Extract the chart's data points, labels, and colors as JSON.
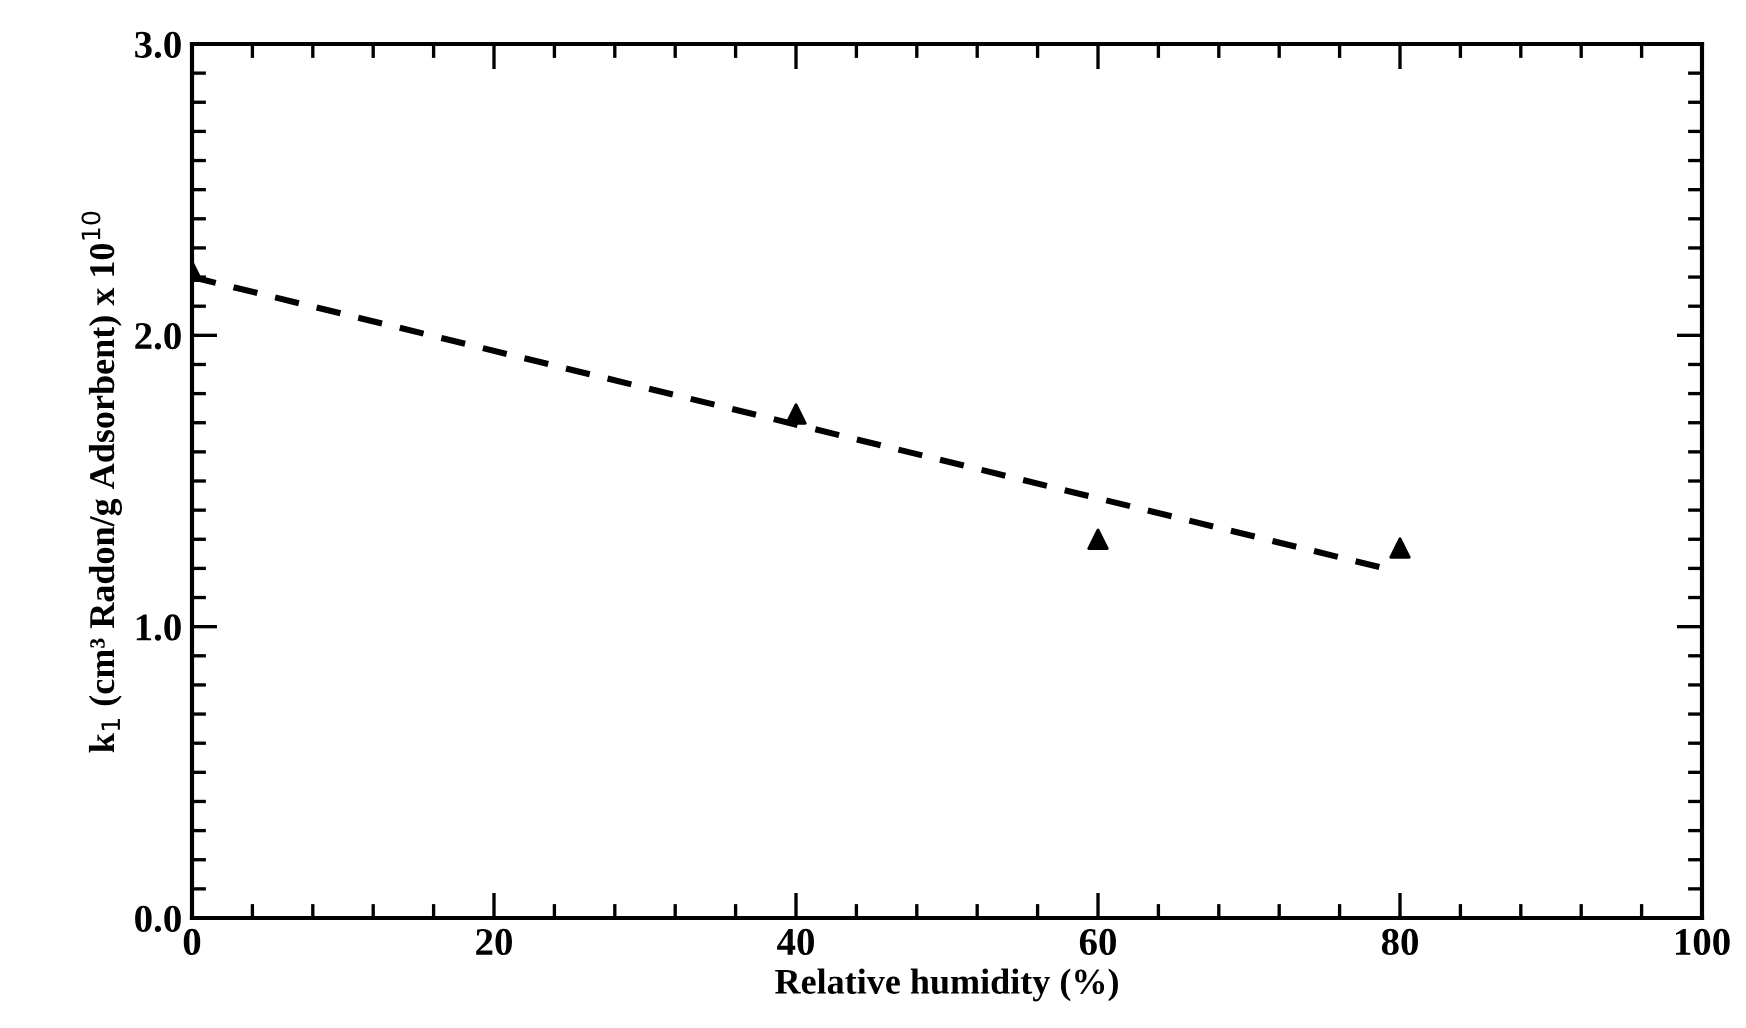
{
  "chart_data": {
    "type": "scatter",
    "xlabel": "Relative humidity (%)",
    "ylabel": "k$_{1}$ (cm³ Radon/g Adsorbent) x 10$^{10}$",
    "series": [
      {
        "color": "#000000",
        "marker": "triangle",
        "x": [
          0,
          40,
          60,
          80
        ],
        "values": [
          2.22,
          1.73,
          1.3,
          1.27
        ]
      },
      {
        "type": "line",
        "color": "#000000",
        "marker": "none",
        "line_style": "dashed",
        "x": [
          0,
          79
        ],
        "values": [
          2.2,
          1.2
        ]
      }
    ],
    "xlim": [
      0,
      100
    ],
    "xticks": [
      0,
      {
        "value": 4,
        "label": null
      },
      {
        "value": 8,
        "label": null
      },
      {
        "value": 12,
        "label": null
      },
      {
        "value": 16,
        "label": null
      },
      20,
      {
        "value": 24,
        "label": null
      },
      {
        "value": 28,
        "label": null
      },
      {
        "value": 32,
        "label": null
      },
      {
        "value": 36,
        "label": null
      },
      40,
      {
        "value": 44,
        "label": null
      },
      {
        "value": 48,
        "label": null
      },
      {
        "value": 52,
        "label": null
      },
      {
        "value": 56,
        "label": null
      },
      60,
      {
        "value": 64,
        "label": null
      },
      {
        "value": 68,
        "label": null
      },
      {
        "value": 72,
        "label": null
      },
      {
        "value": 76,
        "label": null
      },
      80,
      {
        "value": 84,
        "label": null
      },
      {
        "value": 88,
        "label": null
      },
      {
        "value": 92,
        "label": null
      },
      {
        "value": 96,
        "label": null
      },
      100
    ],
    "ylim": [
      0,
      3
    ],
    "yticks": [
      {
        "value": 0,
        "label": "0.0"
      },
      {
        "value": 0.1,
        "label": null
      },
      {
        "value": 0.2,
        "label": null
      },
      {
        "value": 0.3,
        "label": null
      },
      {
        "value": 0.4,
        "label": null
      },
      {
        "value": 0.5,
        "label": null
      },
      {
        "value": 0.6,
        "label": null
      },
      {
        "value": 0.7,
        "label": null
      },
      {
        "value": 0.8,
        "label": null
      },
      {
        "value": 0.9,
        "label": null
      },
      {
        "value": 1,
        "label": "1.0"
      },
      {
        "value": 1.1,
        "label": null
      },
      {
        "value": 1.2,
        "label": null
      },
      {
        "value": 1.3,
        "label": null
      },
      {
        "value": 1.4,
        "label": null
      },
      {
        "value": 1.5,
        "label": null
      },
      {
        "value": 1.6,
        "label": null
      },
      {
        "value": 1.7,
        "label": null
      },
      {
        "value": 1.8,
        "label": null
      },
      {
        "value": 1.9,
        "label": null
      },
      {
        "value": 2,
        "label": "2.0"
      },
      {
        "value": 2.1,
        "label": null
      },
      {
        "value": 2.2,
        "label": null
      },
      {
        "value": 2.3,
        "label": null
      },
      {
        "value": 2.4,
        "label": null
      },
      {
        "value": 2.5,
        "label": null
      },
      {
        "value": 2.6,
        "label": null
      },
      {
        "value": 2.7,
        "label": null
      },
      {
        "value": 2.8,
        "label": null
      },
      {
        "value": 2.9,
        "label": null
      },
      {
        "value": 3,
        "label": "3.0"
      }
    ],
    "grid": false,
    "legend": false
  }
}
